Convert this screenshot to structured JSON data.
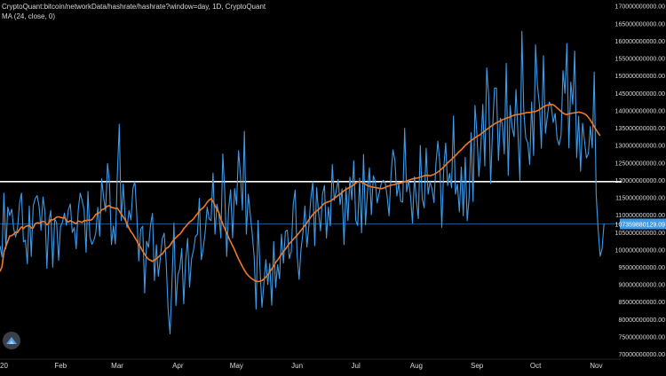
{
  "legend": {
    "symbol_line": "CryptoQuant:bitcoin/networkData/hashrate/hashrate?window=day, 1D, CryptoQuant",
    "indicator_line": "MA (24, close, 0)"
  },
  "price_label": "107359880129.09",
  "colors": {
    "background": "#000000",
    "series": "#3d9be9",
    "ma": "#f07a26",
    "hline": "#ffffff",
    "price_label_bg": "#3d9be9",
    "axis_text": "#d8d8d8",
    "axis_line": "#444444"
  },
  "icons": {
    "logo": "cryptoquant-logo-icon"
  },
  "chart_data": {
    "type": "line",
    "title": "",
    "x_tick_labels": [
      "20",
      "Feb",
      "Mar",
      "Apr",
      "May",
      "Jun",
      "Jul",
      "Aug",
      "Sep",
      "Oct",
      "Nov"
    ],
    "x_tick_days": [
      0,
      31,
      60,
      91,
      121,
      152,
      182,
      213,
      244,
      274,
      305
    ],
    "y_tick_labels": [
      "70000000000.00",
      "75000000000.00",
      "80000000000.00",
      "85000000000.00",
      "90000000000.00",
      "95000000000.00",
      "100000000000.00",
      "105000000000.00",
      "110000000000.00",
      "115000000000.00",
      "120000000000.00",
      "125000000000.00",
      "130000000000.00",
      "135000000000.00",
      "140000000000.00",
      "145000000000.00",
      "150000000000.00",
      "155000000000.00",
      "160000000000.00",
      "165000000000.00",
      "170000000000.00"
    ],
    "ylim": [
      68500000000,
      171700000000
    ],
    "xlim_days": [
      0,
      318
    ],
    "horizontal_line": 119500000000,
    "series": [
      {
        "indicator": "hashrate",
        "step_days": 1,
        "values_billions": [
          101.1,
          97.9,
          116.2,
          100.2,
          112.2,
          109.8,
          111.6,
          106.0,
          103.6,
          106.3,
          113.3,
          116.2,
          102.2,
          102.7,
          95.9,
          112.5,
          98.0,
          112.6,
          114.6,
          115.5,
          112.5,
          105.5,
          115.1,
          111.0,
          94.6,
          108.2,
          111.2,
          94.9,
          108.8,
          107.7,
          96.9,
          106.6,
          107.9,
          110.5,
          107.0,
          111.4,
          113.1,
          104.9,
          106.3,
          100.2,
          111.4,
          116.2,
          114.0,
          111.4,
          99.2,
          116.7,
          103.5,
          101.5,
          102.7,
          104.8,
          112.1,
          103.8,
          120.3,
          115.0,
          111.0,
          124.7,
          119.0,
          101.4,
          106.8,
          101.6,
          121.3,
          136.0,
          108.3,
          118.8,
          109.5,
          106.3,
          111.2,
          108.5,
          117.6,
          119.5,
          109.8,
          96.7,
          105.9,
          106.7,
          87.5,
          102.4,
          100.6,
          107.1,
          110.4,
          91.1,
          101.4,
          92.3,
          97.4,
          103.1,
          104.7,
          96.6,
          82.9,
          75.8,
          90.8,
          107.6,
          83.9,
          92.6,
          94.6,
          100.3,
          84.4,
          96.9,
          103.2,
          89.2,
          97.3,
          99.8,
          103.7,
          104.4,
          114.7,
          97.1,
          100.4,
          105.1,
          112.2,
          108.8,
          108.3,
          122.0,
          104.4,
          113.0,
          110.3,
          103.3,
          127.5,
          116.6,
          98.0,
          111.7,
          117.2,
          103.3,
          117.5,
          112.9,
          128.4,
          121.4,
          111.3,
          134.0,
          104.4,
          115.9,
          110.2,
          104.6,
          97.9,
          82.9,
          108.4,
          94.5,
          83.4,
          90.3,
          97.1,
          89.9,
          96.0,
          84.0,
          102.3,
          89.1,
          95.6,
          91.6,
          104.4,
          96.1,
          105.2,
          105.6,
          97.4,
          99.4,
          112.9,
          117.1,
          98.4,
          91.4,
          100.1,
          105.0,
          112.5,
          100.7,
          106.8,
          114.5,
          119.5,
          101.1,
          117.8,
          110.4,
          105.4,
          116.0,
          118.4,
          103.3,
          112.2,
          106.8,
          124.4,
          114.1,
          116.8,
          120.1,
          112.9,
          117.4,
          101.4,
          117.9,
          108.3,
          120.8,
          114.3,
          125.5,
          108.4,
          106.9,
          120.5,
          104.8,
          127.3,
          107.1,
          116.5,
          123.5,
          110.0,
          121.2,
          119.6,
          113.4,
          116.2,
          118.8,
          119.9,
          119.5,
          115.6,
          109.7,
          121.1,
          128.6,
          125.7,
          115.4,
          118.9,
          113.9,
          113.6,
          134.8,
          116.6,
          120.0,
          115.4,
          107.6,
          120.9,
          114.1,
          108.9,
          129.9,
          114.5,
          112.0,
          129.1,
          115.9,
          119.5,
          117.4,
          113.5,
          124.5,
          131.1,
          124.9,
          106.4,
          123.4,
          130.6,
          118.4,
          121.9,
          117.7,
          138.4,
          115.9,
          118.8,
          110.8,
          123.7,
          109.7,
          126.5,
          108.3,
          114.9,
          133.6,
          113.8,
          141.4,
          133.1,
          121.0,
          129.7,
          141.7,
          124.0,
          152.2,
          144.1,
          119.0,
          134.6,
          146.4,
          146.4,
          125.6,
          137.7,
          136.2,
          127.5,
          153.5,
          121.3,
          141.4,
          135.1,
          132.4,
          146.0,
          133.3,
          119.9,
          162.7,
          139.4,
          132.0,
          130.7,
          124.4,
          142.4,
          127.0,
          158.8,
          146.9,
          141.5,
          129.1,
          155.7,
          133.4,
          138.3,
          142.4,
          141.2,
          136.5,
          139.1,
          131.8,
          130.0,
          132.8,
          151.4,
          144.9,
          159.2,
          129.2,
          148.1,
          141.7,
          157.0,
          126.4,
          138.3,
          122.5,
          136.3,
          131.3,
          126.3,
          127.6,
          135.4,
          129.2,
          151.0,
          115.7,
          105.7,
          98.1,
          100.2,
          107.4
        ]
      },
      {
        "indicator": "MA (24, close, 0)",
        "step_days": 1,
        "values_billions": [
          93.7,
          95.0,
          99.3,
          100.9,
          102.4,
          103.9,
          104.0,
          104.4,
          105.0,
          104.9,
          105.8,
          106.5,
          106.0,
          106.6,
          106.8,
          106.9,
          106.2,
          106.2,
          107.4,
          107.7,
          107.6,
          107.8,
          108.1,
          107.9,
          107.1,
          107.6,
          108.6,
          108.5,
          108.9,
          109.3,
          109.4,
          109.2,
          109.1,
          109.2,
          108.3,
          107.9,
          108.3,
          108.0,
          107.7,
          107.4,
          108.2,
          108.0,
          107.8,
          108.3,
          108.3,
          108.5,
          108.4,
          108.6,
          109.3,
          110.1,
          110.4,
          110.6,
          111.4,
          111.6,
          112.0,
          112.5,
          112.6,
          112.1,
          112.0,
          111.8,
          111.9,
          111.1,
          110.2,
          109.4,
          108.5,
          107.4,
          106.1,
          105.1,
          104.4,
          103.4,
          102.5,
          101.4,
          100.6,
          99.5,
          98.7,
          97.8,
          97.2,
          96.9,
          96.6,
          96.9,
          97.4,
          97.8,
          98.4,
          98.7,
          99.5,
          100.3,
          100.6,
          101.2,
          102.1,
          102.9,
          103.4,
          104.0,
          104.4,
          105.1,
          106.0,
          106.6,
          107.3,
          107.9,
          108.3,
          108.8,
          109.6,
          110.3,
          111.1,
          111.6,
          112.0,
          112.7,
          113.6,
          114.2,
          114.6,
          113.8,
          112.6,
          111.5,
          110.6,
          108.7,
          107.3,
          106.0,
          104.8,
          103.4,
          102.2,
          101.1,
          99.9,
          98.6,
          97.3,
          96.2,
          95.1,
          94.1,
          93.2,
          92.5,
          92.0,
          91.5,
          91.2,
          90.9,
          90.8,
          90.9,
          91.1,
          91.5,
          92.1,
          92.7,
          93.6,
          94.4,
          95.2,
          96.3,
          97.0,
          97.8,
          98.6,
          99.4,
          100.1,
          100.9,
          101.7,
          102.3,
          102.9,
          103.5,
          104.1,
          104.8,
          105.5,
          106.2,
          106.9,
          107.7,
          108.5,
          109.3,
          110.0,
          110.6,
          111.1,
          111.5,
          112.1,
          112.7,
          113.3,
          113.5,
          113.7,
          113.9,
          114.3,
          114.7,
          115.1,
          115.6,
          115.9,
          116.4,
          116.9,
          117.3,
          117.6,
          117.9,
          118.2,
          118.6,
          119.1,
          119.4,
          119.4,
          119.3,
          119.1,
          118.7,
          118.4,
          118.2,
          118.0,
          117.9,
          117.8,
          117.7,
          117.6,
          117.5,
          117.6,
          117.8,
          118.1,
          118.3,
          118.5,
          118.6,
          118.7,
          118.9,
          119.0,
          119.1,
          119.3,
          119.5,
          119.7,
          119.9,
          120.1,
          120.3,
          120.4,
          120.5,
          120.6,
          120.8,
          121.0,
          121.2,
          121.3,
          121.3,
          121.2,
          121.4,
          121.6,
          121.9,
          122.3,
          122.7,
          123.2,
          123.7,
          124.3,
          124.9,
          125.4,
          125.9,
          126.5,
          127.0,
          127.6,
          128.2,
          128.7,
          129.3,
          129.9,
          130.4,
          130.9,
          131.3,
          131.7,
          132.1,
          132.5,
          132.8,
          133.2,
          133.6,
          134.1,
          134.5,
          134.9,
          135.3,
          135.7,
          136.1,
          136.4,
          136.7,
          137.0,
          137.3,
          137.5,
          137.7,
          137.9,
          138.1,
          138.4,
          138.6,
          138.7,
          138.8,
          138.9,
          139.0,
          139.1,
          139.3,
          139.4,
          139.4,
          139.5,
          139.6,
          139.7,
          139.9,
          140.2,
          140.6,
          141.0,
          141.3,
          141.5,
          141.6,
          141.7,
          141.6,
          141.2,
          140.7,
          140.2,
          139.7,
          139.2,
          138.9,
          138.8,
          139.0,
          139.1,
          139.2,
          139.3,
          139.4,
          139.5,
          139.4,
          139.2,
          139.0,
          138.6,
          138.0,
          137.2,
          136.3,
          135.3,
          134.4,
          133.5,
          132.7
        ]
      }
    ],
    "last_value": 107359880129.09,
    "grid": false,
    "legend_position": "top-left"
  }
}
